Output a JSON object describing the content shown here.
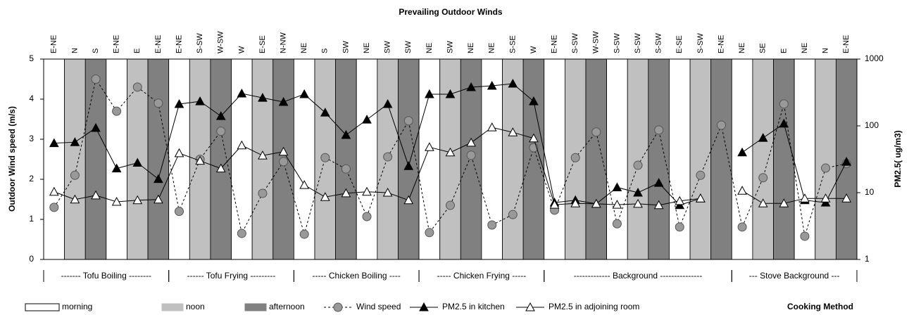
{
  "chart_data": {
    "type": "line",
    "title": "Prevailing Outdoor Winds",
    "ylabel": "Outdoor Wind speed (m/s)",
    "y2label": "PM2.5( ug/m3)",
    "xlabel": "Cooking Method",
    "categories": [
      "E-NE",
      "N",
      "S",
      "E-NE",
      "E",
      "E-NE",
      "E-NE",
      "S-SW",
      "W-SW",
      "W",
      "E-SE",
      "N-NW",
      "NE",
      "S",
      "SW",
      "NE",
      "SW",
      "SW",
      "NE",
      "SW",
      "NE",
      "NE",
      "S-SE",
      "W",
      "E-NE",
      "S-SW",
      "W-SW",
      "S-SW",
      "S-SW",
      "S-SW",
      "E-SE",
      "S-SW",
      "E-NE",
      "NE",
      "SE",
      "E",
      "NE",
      "N",
      "E-NE"
    ],
    "groups": [
      {
        "name": "------- Tofu Boiling --------",
        "size": 6
      },
      {
        "name": "------ Tofu Frying ---------",
        "size": 6
      },
      {
        "name": "----- Chicken Boiling ----",
        "size": 6
      },
      {
        "name": "----- Chicken Frying -----",
        "size": 6
      },
      {
        "name": "------------- Background ---------------",
        "size": 9
      },
      {
        "name": "--- Stove Background ---",
        "size": 6
      }
    ],
    "periods": [
      {
        "name": "morning",
        "color": "#ffffff"
      },
      {
        "name": "noon",
        "color": "#c0c0c0"
      },
      {
        "name": "afternoon",
        "color": "#808080"
      }
    ],
    "series": [
      {
        "name": "Wind speed",
        "color": "#999999",
        "marker": "circle",
        "dashed": true,
        "values": [
          1.3,
          2.1,
          4.5,
          3.7,
          4.3,
          3.9,
          1.2,
          2.5,
          3.2,
          0.65,
          1.65,
          2.44,
          0.63,
          2.54,
          2.26,
          1.07,
          2.56,
          3.46,
          0.67,
          1.35,
          2.6,
          0.86,
          1.12,
          2.79,
          1.23,
          2.54,
          3.18,
          0.89,
          2.35,
          3.23,
          0.81,
          2.1,
          3.35,
          0.81,
          2.04,
          3.88,
          0.58,
          2.28,
          2.39
        ]
      },
      {
        "name": "PM2.5 in kitchen",
        "color": "#000000",
        "marker": "triangle",
        "axis": "y2",
        "values": [
          55,
          57,
          93,
          23,
          28,
          16,
          212,
          233,
          140,
          305,
          263,
          228,
          298,
          158,
          73,
          124,
          212,
          25,
          298,
          298,
          379,
          398,
          428,
          233,
          7.1,
          7.7,
          6.8,
          12,
          10,
          14,
          6.5,
          8.2,
          null,
          40,
          66,
          108,
          7.7,
          7.1,
          29
        ]
      },
      {
        "name": "PM2.5 in adjoining room",
        "color": "#ffffff",
        "marker": "triangle",
        "axis": "y2",
        "values": [
          10.3,
          7.9,
          9.1,
          7.3,
          7.7,
          7.9,
          39,
          30,
          23,
          51,
          36,
          41,
          13,
          8.6,
          9.8,
          10.3,
          10,
          7.7,
          48,
          40,
          56,
          95,
          80,
          65,
          6.6,
          6.9,
          6.8,
          6.6,
          6.8,
          6.5,
          7.5,
          8.2,
          null,
          10.7,
          6.9,
          6.9,
          8.2,
          8.2,
          8.2
        ]
      }
    ],
    "ylim": [
      0,
      5
    ],
    "yticks": [
      0,
      1,
      2,
      3,
      4,
      5
    ],
    "y2lim": [
      1,
      1000
    ],
    "y2ticks": [
      1,
      10,
      100,
      1000
    ],
    "y2scale": "log"
  }
}
